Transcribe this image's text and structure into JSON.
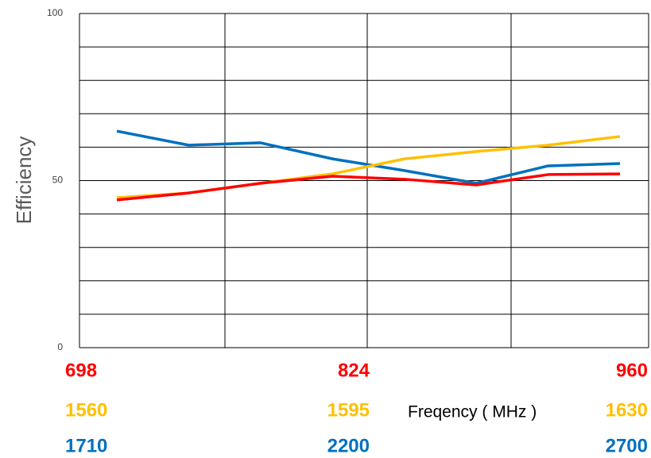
{
  "chart_data": {
    "type": "line",
    "ylabel": "Efficiency",
    "xlabel": "Freqency ( MHz )",
    "ylim": [
      0,
      100
    ],
    "yticks": [
      0,
      50,
      100
    ],
    "minor_yticks": [
      10,
      20,
      30,
      40,
      60,
      70,
      80,
      90
    ],
    "grid": true,
    "categories": [
      null,
      null,
      null,
      null,
      null,
      null,
      null,
      null
    ],
    "x_bands": [
      {
        "color": "#ff0000",
        "labels": [
          "698",
          "824",
          "960"
        ]
      },
      {
        "color": "#ffc000",
        "labels": [
          "1560",
          "1595",
          "1630"
        ]
      },
      {
        "color": "#0070c0",
        "labels": [
          "1710",
          "2200",
          "2700"
        ]
      }
    ],
    "series": [
      {
        "color": "#0070c0",
        "values": [
          64.8,
          60.6,
          61.3,
          56.5,
          53,
          49.2,
          54.4,
          55.1
        ]
      },
      {
        "color": "#ffc000",
        "values": [
          44.9,
          46.3,
          49.2,
          52,
          56.5,
          58.7,
          60.6,
          63.2
        ]
      },
      {
        "color": "#ff0000",
        "values": [
          44.2,
          46.3,
          49.2,
          51.3,
          50.4,
          48.7,
          51.8,
          52
        ]
      }
    ]
  }
}
